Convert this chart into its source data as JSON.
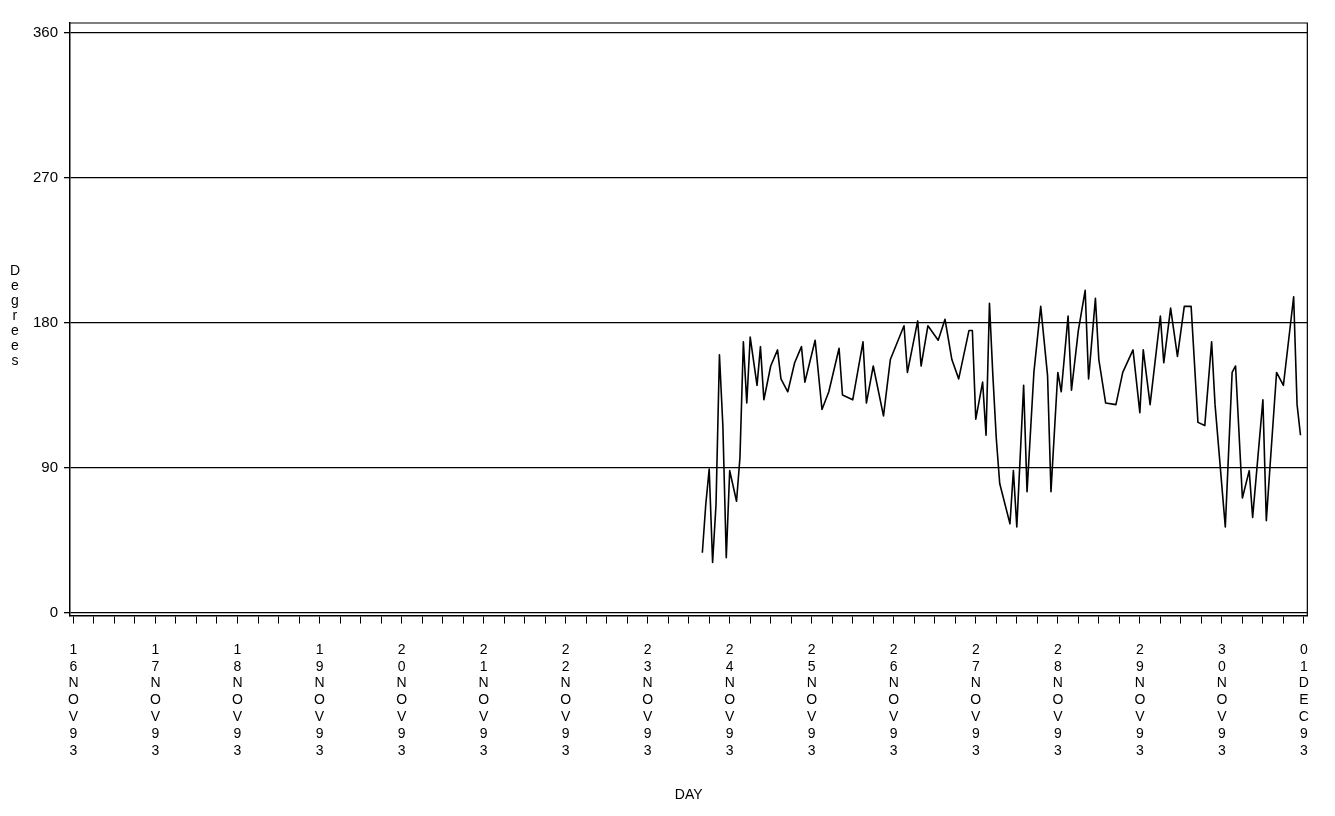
{
  "chart_data": {
    "type": "line",
    "xlabel": "DAY",
    "ylabel": "Degrees",
    "color": "#000000",
    "grid": "y",
    "ylim": [
      -2,
      366
    ],
    "yticks": [
      0,
      90,
      180,
      270,
      360
    ],
    "xlim": [
      "--11-15T23:00",
      "--12-01T01:00"
    ],
    "xticks": [
      {
        "value": "--11-16",
        "label": "16NOV93"
      },
      {
        "value": "--11-16T06:00",
        "label": null
      },
      {
        "value": "--11-16T12:00",
        "label": null
      },
      {
        "value": "--11-16T18:00",
        "label": null
      },
      {
        "value": "--11-17",
        "label": "17NOV93"
      },
      {
        "value": "--11-17T06:00",
        "label": null
      },
      {
        "value": "--11-17T12:00",
        "label": null
      },
      {
        "value": "--11-17T18:00",
        "label": null
      },
      {
        "value": "--11-18",
        "label": "18NOV93"
      },
      {
        "value": "--11-18T06:00",
        "label": null
      },
      {
        "value": "--11-18T12:00",
        "label": null
      },
      {
        "value": "--11-18T18:00",
        "label": null
      },
      {
        "value": "--11-19",
        "label": "19NOV93"
      },
      {
        "value": "--11-19T06:00",
        "label": null
      },
      {
        "value": "--11-19T12:00",
        "label": null
      },
      {
        "value": "--11-19T18:00",
        "label": null
      },
      {
        "value": "--11-20",
        "label": "20NOV93"
      },
      {
        "value": "--11-20T06:00",
        "label": null
      },
      {
        "value": "--11-20T12:00",
        "label": null
      },
      {
        "value": "--11-20T18:00",
        "label": null
      },
      {
        "value": "--11-21",
        "label": "21NOV93"
      },
      {
        "value": "--11-21T06:00",
        "label": null
      },
      {
        "value": "--11-21T12:00",
        "label": null
      },
      {
        "value": "--11-21T18:00",
        "label": null
      },
      {
        "value": "--11-22",
        "label": "22NOV93"
      },
      {
        "value": "--11-22T06:00",
        "label": null
      },
      {
        "value": "--11-22T12:00",
        "label": null
      },
      {
        "value": "--11-22T18:00",
        "label": null
      },
      {
        "value": "--11-23",
        "label": "23NOV93"
      },
      {
        "value": "--11-23T06:00",
        "label": null
      },
      {
        "value": "--11-23T12:00",
        "label": null
      },
      {
        "value": "--11-23T18:00",
        "label": null
      },
      {
        "value": "--11-24",
        "label": "24NOV93"
      },
      {
        "value": "--11-24T06:00",
        "label": null
      },
      {
        "value": "--11-24T12:00",
        "label": null
      },
      {
        "value": "--11-24T18:00",
        "label": null
      },
      {
        "value": "--11-25",
        "label": "25NOV93"
      },
      {
        "value": "--11-25T06:00",
        "label": null
      },
      {
        "value": "--11-25T12:00",
        "label": null
      },
      {
        "value": "--11-25T18:00",
        "label": null
      },
      {
        "value": "--11-26",
        "label": "26NOV93"
      },
      {
        "value": "--11-26T06:00",
        "label": null
      },
      {
        "value": "--11-26T12:00",
        "label": null
      },
      {
        "value": "--11-26T18:00",
        "label": null
      },
      {
        "value": "--11-27",
        "label": "27NOV93"
      },
      {
        "value": "--11-27T06:00",
        "label": null
      },
      {
        "value": "--11-27T12:00",
        "label": null
      },
      {
        "value": "--11-27T18:00",
        "label": null
      },
      {
        "value": "--11-28",
        "label": "28NOV93"
      },
      {
        "value": "--11-28T06:00",
        "label": null
      },
      {
        "value": "--11-28T12:00",
        "label": null
      },
      {
        "value": "--11-28T18:00",
        "label": null
      },
      {
        "value": "--11-29",
        "label": "29NOV93"
      },
      {
        "value": "--11-29T06:00",
        "label": null
      },
      {
        "value": "--11-29T12:00",
        "label": null
      },
      {
        "value": "--11-29T18:00",
        "label": null
      },
      {
        "value": "--11-30",
        "label": "30NOV93"
      },
      {
        "value": "--11-30T06:00",
        "label": null
      },
      {
        "value": "--11-30T12:00",
        "label": null
      },
      {
        "value": "--11-30T18:00",
        "label": null
      },
      {
        "value": "--12-01",
        "label": "01DEC93"
      }
    ],
    "x": [
      "--11-23T16:00",
      "--11-23T17:00",
      "--11-23T18:00",
      "--11-23T19:00",
      "--11-23T20:00",
      "--11-23T21:00",
      "--11-23T22:00",
      "--11-23T23:00",
      "--11-24T00:00",
      "--11-24T02:00",
      "--11-24T03:00",
      "--11-24T04:00",
      "--11-24T05:00",
      "--11-24T06:00",
      "--11-24T08:00",
      "--11-24T09:00",
      "--11-24T10:00",
      "--11-24T12:00",
      "--11-24T14:00",
      "--11-24T15:00",
      "--11-24T17:00",
      "--11-24T19:00",
      "--11-24T21:00",
      "--11-24T22:00",
      "--11-25T01:00",
      "--11-25T03:00",
      "--11-25T05:00",
      "--11-25T08:00",
      "--11-25T09:00",
      "--11-25T12:00",
      "--11-25T15:00",
      "--11-25T16:00",
      "--11-25T18:00",
      "--11-25T21:00",
      "--11-25T23:00",
      "--11-26T03:00",
      "--11-26T04:00",
      "--11-26T07:00",
      "--11-26T08:00",
      "--11-26T10:00",
      "--11-26T13:00",
      "--11-26T15:00",
      "--11-26T17:00",
      "--11-26T19:00",
      "--11-26T22:00",
      "--11-26T23:00",
      "--11-27T00:00",
      "--11-27T02:00",
      "--11-27T03:00",
      "--11-27T04:00",
      "--11-27T05:00",
      "--11-27T06:00",
      "--11-27T07:00",
      "--11-27T10:00",
      "--11-27T11:00",
      "--11-27T12:00",
      "--11-27T14:00",
      "--11-27T15:00",
      "--11-27T17:00",
      "--11-27T19:00",
      "--11-27T21:00",
      "--11-27T22:00",
      "--11-28T00:00",
      "--11-28T01:00",
      "--11-28T03:00",
      "--11-28T04:00",
      "--11-28T06:00",
      "--11-28T08:00",
      "--11-28T09:00",
      "--11-28T11:00",
      "--11-28T12:00",
      "--11-28T14:00",
      "--11-28T17:00",
      "--11-28T19:00",
      "--11-28T22:00",
      "--11-29T00:00",
      "--11-29T01:00",
      "--11-29T03:00",
      "--11-29T06:00",
      "--11-29T07:00",
      "--11-29T09:00",
      "--11-29T11:00",
      "--11-29T13:00",
      "--11-29T15:00",
      "--11-29T17:00",
      "--11-29T19:00",
      "--11-29T21:00",
      "--11-29T22:00",
      "--11-30T01:00",
      "--11-30T03:00",
      "--11-30T04:00",
      "--11-30T06:00",
      "--11-30T08:00",
      "--11-30T09:00",
      "--11-30T12:00",
      "--11-30T13:00",
      "--11-30T14:00",
      "--11-30T16:00",
      "--11-30T18:00",
      "--11-30T21:00",
      "--11-30T22:00",
      "--11-30T23:00"
    ],
    "values": [
      37,
      67,
      89,
      31,
      67,
      160,
      116,
      34,
      88,
      69,
      96,
      168,
      130,
      171,
      141,
      165,
      132,
      153,
      163,
      145,
      137,
      155,
      165,
      143,
      169,
      126,
      137,
      164,
      135,
      132,
      168,
      130,
      153,
      122,
      157,
      178,
      149,
      181,
      153,
      178,
      169,
      182,
      157,
      145,
      175,
      175,
      120,
      143,
      110,
      192,
      147,
      108,
      80,
      55,
      88,
      53,
      141,
      75,
      149,
      190,
      147,
      75,
      149,
      137,
      184,
      138,
      175,
      200,
      145,
      195,
      157,
      130,
      129,
      149,
      163,
      124,
      163,
      129,
      184,
      155,
      189,
      159,
      190,
      190,
      118,
      116,
      168,
      129,
      53,
      149,
      153,
      71,
      88,
      59,
      132,
      57,
      88,
      149,
      141,
      196,
      129,
      110
    ]
  }
}
